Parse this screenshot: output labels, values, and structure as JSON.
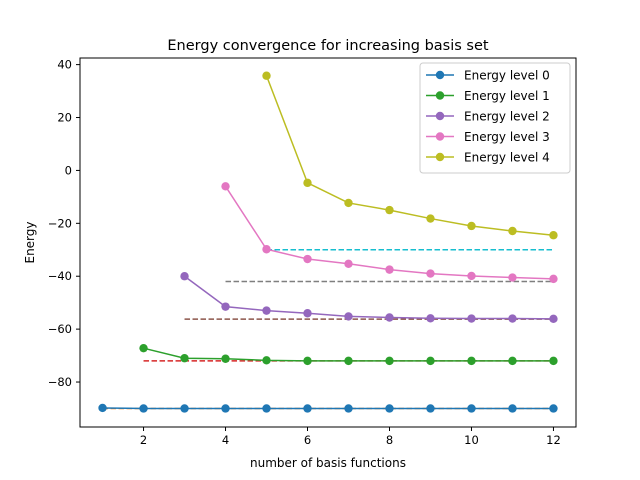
{
  "chart_data": {
    "type": "line",
    "title": "Energy convergence for increasing basis set",
    "xlabel": "number of basis functions",
    "ylabel": "Energy",
    "xlim": [
      0.45,
      12.55
    ],
    "ylim": [
      -97,
      42.5
    ],
    "xticks": [
      2,
      4,
      6,
      8,
      10,
      12
    ],
    "yticks": [
      40,
      20,
      0,
      -20,
      -40,
      -60,
      -80
    ],
    "ytick_labels": [
      "40",
      "20",
      "0",
      "−20",
      "−40",
      "−60",
      "−80"
    ],
    "grid": false,
    "legend_position": "top-right",
    "series": [
      {
        "name": "Energy level 0",
        "color": "#1f77b4",
        "x": [
          1,
          2,
          3,
          4,
          5,
          6,
          7,
          8,
          9,
          10,
          11,
          12
        ],
        "y": [
          -89.8,
          -90.0,
          -90.0,
          -90.0,
          -90.0,
          -90.0,
          -90.0,
          -90.0,
          -90.0,
          -90.0,
          -90.0,
          -90.0
        ]
      },
      {
        "name": "Energy level 1",
        "color": "#2ca02c",
        "x": [
          2,
          3,
          4,
          5,
          6,
          7,
          8,
          9,
          10,
          11,
          12
        ],
        "y": [
          -67.2,
          -71.0,
          -71.2,
          -71.8,
          -72.0,
          -72.0,
          -72.0,
          -72.0,
          -72.0,
          -72.0,
          -72.0
        ]
      },
      {
        "name": "Energy level 2",
        "color": "#9467bd",
        "x": [
          3,
          4,
          5,
          6,
          7,
          8,
          9,
          10,
          11,
          12
        ],
        "y": [
          -40.0,
          -51.5,
          -53.0,
          -54.0,
          -55.2,
          -55.6,
          -55.9,
          -56.0,
          -56.0,
          -56.1
        ]
      },
      {
        "name": "Energy level 3",
        "color": "#e377c2",
        "x": [
          4,
          5,
          6,
          7,
          8,
          9,
          10,
          11,
          12
        ],
        "y": [
          -6.0,
          -29.8,
          -33.5,
          -35.3,
          -37.5,
          -39.0,
          -39.9,
          -40.5,
          -41.0
        ]
      },
      {
        "name": "Energy level 4",
        "color": "#bcbd22",
        "x": [
          5,
          6,
          7,
          8,
          9,
          10,
          11,
          12
        ],
        "y": [
          35.8,
          -4.7,
          -12.3,
          -15.0,
          -18.2,
          -21.0,
          -22.9,
          -24.5
        ]
      }
    ],
    "reference_lines": [
      {
        "color": "#ff7f0e",
        "y": -90.0,
        "x_from": 1,
        "x_to": 12
      },
      {
        "color": "#d62728",
        "y": -72.0,
        "x_from": 2,
        "x_to": 12
      },
      {
        "color": "#8c564b",
        "y": -56.2,
        "x_from": 3,
        "x_to": 12
      },
      {
        "color": "#7f7f7f",
        "y": -42.0,
        "x_from": 4,
        "x_to": 12
      },
      {
        "color": "#17becf",
        "y": -30.0,
        "x_from": 5,
        "x_to": 12
      }
    ]
  }
}
